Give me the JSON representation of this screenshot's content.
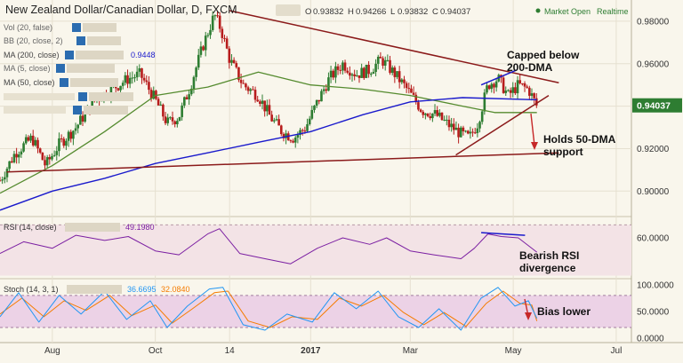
{
  "header": {
    "symbol": "New Zealand Dollar/Canadian Dollar, D, FXCM",
    "ohlc": {
      "o_label": "O",
      "o": "0.93832",
      "h_label": "H",
      "h": "0.94266",
      "l_label": "L",
      "l": "0.93832",
      "c_label": "C",
      "c": "0.94037"
    },
    "status": "Market Open",
    "mode": "Realtime"
  },
  "indicators": {
    "vol": "Vol (20, false)",
    "bb": "BB (20, close, 2)",
    "ma200": "MA (200, close)",
    "ma200_value": "0.9448",
    "ma5": "MA (5, close)",
    "ma50": "MA (50, close)"
  },
  "annotations": {
    "capped_line1": "Capped below",
    "capped_line2": "200-DMA",
    "holds_line1": "Holds 50-DMA",
    "holds_line2": "support",
    "rsi_line1": "Bearish RSI",
    "rsi_line2": "divergence",
    "bias": "Bias lower"
  },
  "colors": {
    "bull": "#2e7d32",
    "bear": "#b71c1c",
    "ma50": "#558b2f",
    "ma200": "#1a1acc",
    "trend": "#8b1a1a",
    "rsi": "#7b1fa2",
    "stoch_k": "#2196f3",
    "stoch_d": "#f57c00",
    "current_badge": "#2e7d32",
    "divergence": "#1a1acc",
    "arrow": "#c62828"
  },
  "chart_data": [
    {
      "type": "candlestick",
      "title": "New Zealand Dollar/Canadian Dollar, D, FXCM",
      "ylim": [
        0.888,
        0.99
      ],
      "y_ticks": [
        "0.98000",
        "0.96000",
        "0.94000",
        "0.92000",
        "0.90000"
      ],
      "y_tick_values": [
        0.98,
        0.96,
        0.94,
        0.92,
        0.9
      ],
      "x_ticks": [
        "Aug",
        "Oct",
        "14",
        "2017",
        "Mar",
        "May",
        "Jul"
      ],
      "x_tick_dates": [
        "2016-08-01",
        "2016-10-01",
        "2016-11-14",
        "2017-01-01",
        "2017-03-01",
        "2017-05-01",
        "2017-07-01"
      ],
      "x_range": [
        "2016-07-01",
        "2017-07-10"
      ],
      "current_price": "0.94037",
      "current_value": 0.94037,
      "close_path": [
        [
          "2016-07-01",
          0.905
        ],
        [
          "2016-07-10",
          0.918
        ],
        [
          "2016-07-20",
          0.925
        ],
        [
          "2016-07-28",
          0.912
        ],
        [
          "2016-08-05",
          0.922
        ],
        [
          "2016-08-15",
          0.93
        ],
        [
          "2016-08-25",
          0.942
        ],
        [
          "2016-09-05",
          0.948
        ],
        [
          "2016-09-15",
          0.953
        ],
        [
          "2016-09-22",
          0.955
        ],
        [
          "2016-10-01",
          0.943
        ],
        [
          "2016-10-08",
          0.932
        ],
        [
          "2016-10-15",
          0.935
        ],
        [
          "2016-10-22",
          0.95
        ],
        [
          "2016-10-29",
          0.968
        ],
        [
          "2016-11-05",
          0.983
        ],
        [
          "2016-11-09",
          0.976
        ],
        [
          "2016-11-14",
          0.962
        ],
        [
          "2016-11-22",
          0.95
        ],
        [
          "2016-12-01",
          0.945
        ],
        [
          "2016-12-08",
          0.935
        ],
        [
          "2016-12-15",
          0.928
        ],
        [
          "2016-12-22",
          0.925
        ],
        [
          "2016-12-29",
          0.93
        ],
        [
          "2017-01-05",
          0.942
        ],
        [
          "2017-01-12",
          0.953
        ],
        [
          "2017-01-20",
          0.96
        ],
        [
          "2017-01-28",
          0.955
        ],
        [
          "2017-02-05",
          0.957
        ],
        [
          "2017-02-12",
          0.962
        ],
        [
          "2017-02-20",
          0.955
        ],
        [
          "2017-02-28",
          0.947
        ],
        [
          "2017-03-08",
          0.938
        ],
        [
          "2017-03-16",
          0.936
        ],
        [
          "2017-03-24",
          0.931
        ],
        [
          "2017-03-31",
          0.927
        ],
        [
          "2017-04-05",
          0.925
        ],
        [
          "2017-04-10",
          0.932
        ],
        [
          "2017-04-16",
          0.95
        ],
        [
          "2017-04-22",
          0.953
        ],
        [
          "2017-04-28",
          0.945
        ],
        [
          "2017-05-04",
          0.95
        ],
        [
          "2017-05-10",
          0.948
        ],
        [
          "2017-05-15",
          0.94
        ]
      ],
      "ma50": [
        [
          "2016-07-01",
          0.899
        ],
        [
          "2016-08-01",
          0.912
        ],
        [
          "2016-09-01",
          0.928
        ],
        [
          "2016-10-01",
          0.945
        ],
        [
          "2016-11-01",
          0.949
        ],
        [
          "2016-12-01",
          0.956
        ],
        [
          "2017-01-01",
          0.95
        ],
        [
          "2017-02-01",
          0.948
        ],
        [
          "2017-03-01",
          0.945
        ],
        [
          "2017-04-01",
          0.94
        ],
        [
          "2017-04-20",
          0.937
        ],
        [
          "2017-05-15",
          0.937
        ]
      ],
      "ma200": [
        [
          "2016-07-01",
          0.891
        ],
        [
          "2016-08-01",
          0.9
        ],
        [
          "2016-09-01",
          0.906
        ],
        [
          "2016-10-01",
          0.913
        ],
        [
          "2016-11-01",
          0.918
        ],
        [
          "2016-12-01",
          0.923
        ],
        [
          "2017-01-01",
          0.928
        ],
        [
          "2017-02-01",
          0.936
        ],
        [
          "2017-03-01",
          0.942
        ],
        [
          "2017-04-01",
          0.944
        ],
        [
          "2017-05-15",
          0.943
        ]
      ],
      "trendlines": [
        {
          "name": "upper-resistance",
          "from": [
            "2016-11-14",
            0.985
          ],
          "to": [
            "2017-05-28",
            0.951
          ]
        },
        {
          "name": "lower-support",
          "from": [
            "2016-07-05",
            0.909
          ],
          "to": [
            "2017-05-28",
            0.918
          ]
        },
        {
          "name": "wedge-support",
          "from": [
            "2017-03-28",
            0.917
          ],
          "to": [
            "2017-05-22",
            0.945
          ]
        },
        {
          "name": "price-divergence",
          "from": [
            "2017-04-12",
            0.95
          ],
          "to": [
            "2017-05-03",
            0.957
          ]
        }
      ]
    },
    {
      "type": "line",
      "title": "RSI (14, close)",
      "value": "49.1980",
      "ylim": [
        30,
        75
      ],
      "y_ticks": [
        "60.0000"
      ],
      "y_tick_values": [
        60
      ],
      "x_range": [
        "2016-07-01",
        "2017-07-10"
      ],
      "series_path": [
        [
          "2016-07-01",
          48
        ],
        [
          "2016-07-15",
          57
        ],
        [
          "2016-08-01",
          52
        ],
        [
          "2016-08-15",
          62
        ],
        [
          "2016-09-01",
          58
        ],
        [
          "2016-09-15",
          61
        ],
        [
          "2016-10-01",
          50
        ],
        [
          "2016-10-15",
          47
        ],
        [
          "2016-11-01",
          63
        ],
        [
          "2016-11-08",
          67
        ],
        [
          "2016-11-20",
          48
        ],
        [
          "2016-12-05",
          44
        ],
        [
          "2016-12-20",
          40
        ],
        [
          "2017-01-05",
          52
        ],
        [
          "2017-01-20",
          60
        ],
        [
          "2017-02-05",
          55
        ],
        [
          "2017-02-15",
          60
        ],
        [
          "2017-03-01",
          50
        ],
        [
          "2017-03-15",
          47
        ],
        [
          "2017-03-31",
          44
        ],
        [
          "2017-04-08",
          52
        ],
        [
          "2017-04-16",
          63
        ],
        [
          "2017-04-24",
          61
        ],
        [
          "2017-05-04",
          60
        ],
        [
          "2017-05-15",
          49
        ]
      ],
      "divergence": {
        "from": [
          "2017-04-12",
          64
        ],
        "to": [
          "2017-05-08",
          62
        ]
      }
    },
    {
      "type": "line",
      "title": "Stoch (14, 3, 1)",
      "k_value": "36.6695",
      "d_value": "32.0840",
      "ylim": [
        -5,
        108
      ],
      "y_ticks": [
        "100.0000",
        "50.0000",
        "0.0000"
      ],
      "y_tick_values": [
        100,
        50,
        0
      ],
      "band": [
        20,
        80
      ],
      "x_range": [
        "2016-07-01",
        "2017-07-10"
      ],
      "k_path": [
        [
          "2016-07-01",
          40
        ],
        [
          "2016-07-12",
          85
        ],
        [
          "2016-07-24",
          30
        ],
        [
          "2016-08-05",
          80
        ],
        [
          "2016-08-18",
          45
        ],
        [
          "2016-09-01",
          88
        ],
        [
          "2016-09-14",
          35
        ],
        [
          "2016-09-28",
          70
        ],
        [
          "2016-10-08",
          20
        ],
        [
          "2016-10-20",
          60
        ],
        [
          "2016-11-02",
          92
        ],
        [
          "2016-11-10",
          95
        ],
        [
          "2016-11-22",
          25
        ],
        [
          "2016-12-05",
          15
        ],
        [
          "2016-12-18",
          45
        ],
        [
          "2017-01-02",
          30
        ],
        [
          "2017-01-15",
          85
        ],
        [
          "2017-01-28",
          55
        ],
        [
          "2017-02-10",
          88
        ],
        [
          "2017-02-22",
          40
        ],
        [
          "2017-03-06",
          20
        ],
        [
          "2017-03-18",
          55
        ],
        [
          "2017-03-31",
          15
        ],
        [
          "2017-04-12",
          75
        ],
        [
          "2017-04-22",
          95
        ],
        [
          "2017-05-02",
          60
        ],
        [
          "2017-05-10",
          70
        ],
        [
          "2017-05-15",
          37
        ]
      ],
      "d_path": [
        [
          "2016-07-01",
          45
        ],
        [
          "2016-07-14",
          75
        ],
        [
          "2016-07-27",
          40
        ],
        [
          "2016-08-08",
          70
        ],
        [
          "2016-08-21",
          52
        ],
        [
          "2016-09-04",
          80
        ],
        [
          "2016-09-17",
          42
        ],
        [
          "2016-10-01",
          62
        ],
        [
          "2016-10-11",
          28
        ],
        [
          "2016-10-23",
          55
        ],
        [
          "2016-11-05",
          85
        ],
        [
          "2016-11-13",
          88
        ],
        [
          "2016-11-25",
          32
        ],
        [
          "2016-12-08",
          20
        ],
        [
          "2016-12-21",
          40
        ],
        [
          "2017-01-05",
          35
        ],
        [
          "2017-01-18",
          75
        ],
        [
          "2017-01-31",
          60
        ],
        [
          "2017-02-13",
          80
        ],
        [
          "2017-02-25",
          48
        ],
        [
          "2017-03-09",
          25
        ],
        [
          "2017-03-21",
          48
        ],
        [
          "2017-04-03",
          22
        ],
        [
          "2017-04-15",
          65
        ],
        [
          "2017-04-25",
          88
        ],
        [
          "2017-05-05",
          65
        ],
        [
          "2017-05-12",
          62
        ],
        [
          "2017-05-15",
          32
        ]
      ]
    }
  ]
}
